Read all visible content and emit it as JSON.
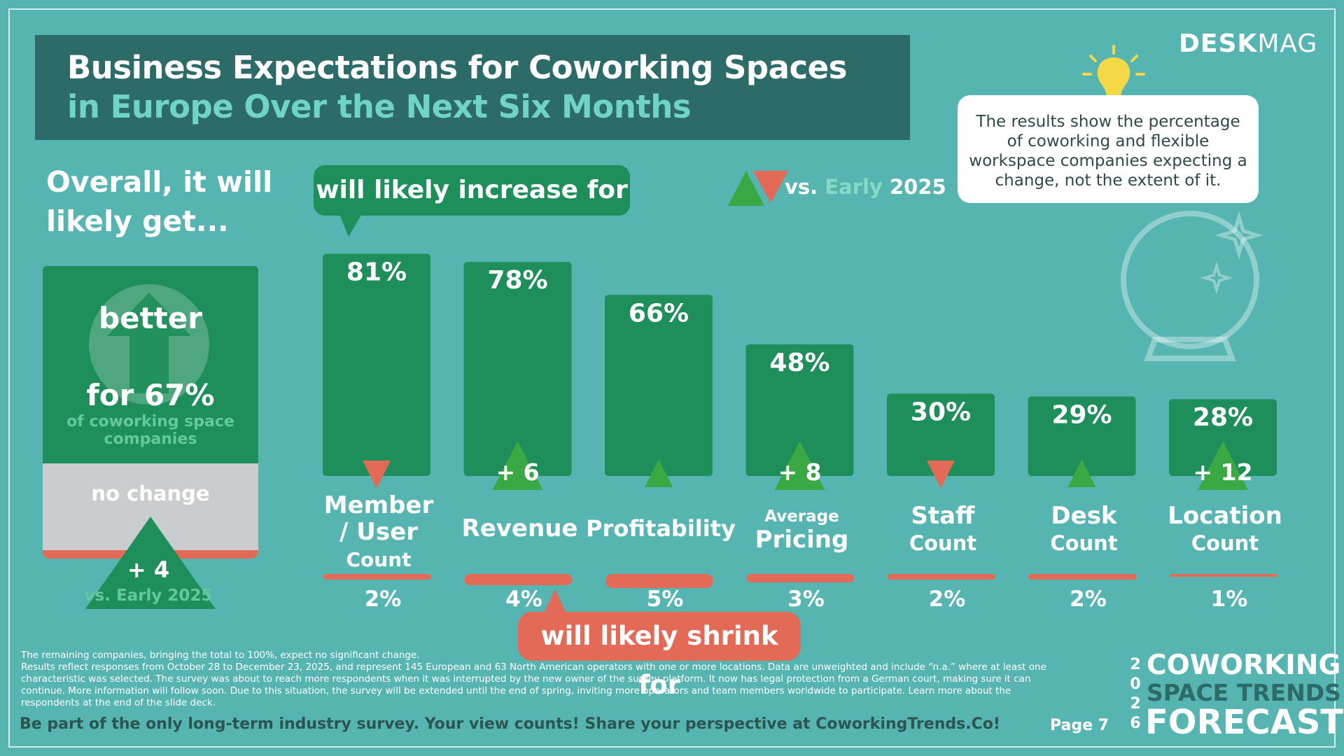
{
  "title": {
    "line1": "Business Expectations for Coworking Spaces",
    "line2": "in Europe Over the Next Six Months"
  },
  "brand": {
    "bold": "DESK",
    "thin": "MAG"
  },
  "note": "The results show the percentage of coworking and flexible workspace companies expecting a change, not the extent of it.",
  "overall": {
    "heading": "Overall, it will likely get...",
    "better_label": "better",
    "better_pct": "for 67%",
    "better_sub": "of coworking space companies",
    "no_change_label": "no change",
    "delta": "+ 4",
    "delta_sub": "vs. Early 2025",
    "better_value": 67
  },
  "bubbles": {
    "increase": "will likely increase for",
    "shrink": "will likely shrink for"
  },
  "legend": {
    "vs": "vs.",
    "early": "Early",
    "year": "2025"
  },
  "colors": {
    "background": "#56b5b1",
    "bar_green": "#1e8f5b",
    "up_green": "#3aa843",
    "down_red": "#e46a58",
    "title_box": "#2c6b68",
    "accent_teal": "#6fd3c5"
  },
  "chart_data": {
    "type": "bar",
    "categories": [
      "Member / User Count",
      "Revenue",
      "Profitability",
      "Average Pricing",
      "Staff Count",
      "Desk Count",
      "Location Count"
    ],
    "category_lines": [
      [
        {
          "t": "Member",
          "s": 34
        },
        {
          "t": "/ User",
          "s": 34
        },
        {
          "t": "Count",
          "s": 28
        }
      ],
      [
        {
          "t": "Revenue",
          "s": 34
        }
      ],
      [
        {
          "t": "Profitability",
          "s": 32
        }
      ],
      [
        {
          "t": "Average",
          "s": 23
        },
        {
          "t": "Pricing",
          "s": 34
        }
      ],
      [
        {
          "t": "Staff",
          "s": 34
        },
        {
          "t": "Count",
          "s": 29
        }
      ],
      [
        {
          "t": "Desk",
          "s": 34
        },
        {
          "t": "Count",
          "s": 29
        }
      ],
      [
        {
          "t": "Location",
          "s": 34
        },
        {
          "t": "Count",
          "s": 29
        }
      ]
    ],
    "series": [
      {
        "name": "will likely increase for",
        "values": [
          81,
          78,
          66,
          48,
          30,
          29,
          28
        ],
        "labels": [
          "81%",
          "78%",
          "66%",
          "48%",
          "30%",
          "29%",
          "28%"
        ]
      },
      {
        "name": "will likely shrink for",
        "values": [
          2,
          4,
          5,
          3,
          2,
          2,
          1
        ],
        "labels": [
          "2%",
          "4%",
          "5%",
          "3%",
          "2%",
          "2%",
          "1%"
        ]
      }
    ],
    "change_vs_early_2025": [
      {
        "direction": "down",
        "label": ""
      },
      {
        "direction": "up",
        "label": "+ 6"
      },
      {
        "direction": "up",
        "label": ""
      },
      {
        "direction": "up",
        "label": "+ 8"
      },
      {
        "direction": "down",
        "label": ""
      },
      {
        "direction": "up",
        "label": ""
      },
      {
        "direction": "up",
        "label": "+ 12"
      }
    ],
    "ylim": [
      0,
      100
    ]
  },
  "footer": {
    "notes": [
      "The remaining companies, bringing the total to 100%, expect no significant change.",
      "Results reflect responses from October 28 to December 23, 2025, and represent 145 European and 63 North American operators with one or more locations. Data are unweighted and include “n.a.” where at least one characteristic was selected. The survey was about to reach more respondents when it was interrupted by the new owner of the survey platform. It now has legal protection from a German court, making sure it can continue. More information will follow soon. Due to this situation, the survey will be extended until the end of spring, inviting more operators and team members worldwide to participate. Learn more about the respondents at the end of the slide deck."
    ],
    "cta": "Be part of the only long-term industry survey. Your view counts! Share your perspective at CoworkingTrends.Co!",
    "page": "Page  7",
    "year_digits": [
      "2",
      "0",
      "2",
      "6"
    ],
    "forecast_1": "COWORKING",
    "forecast_2": "SPACE TRENDS",
    "forecast_3": "FORECAST"
  }
}
